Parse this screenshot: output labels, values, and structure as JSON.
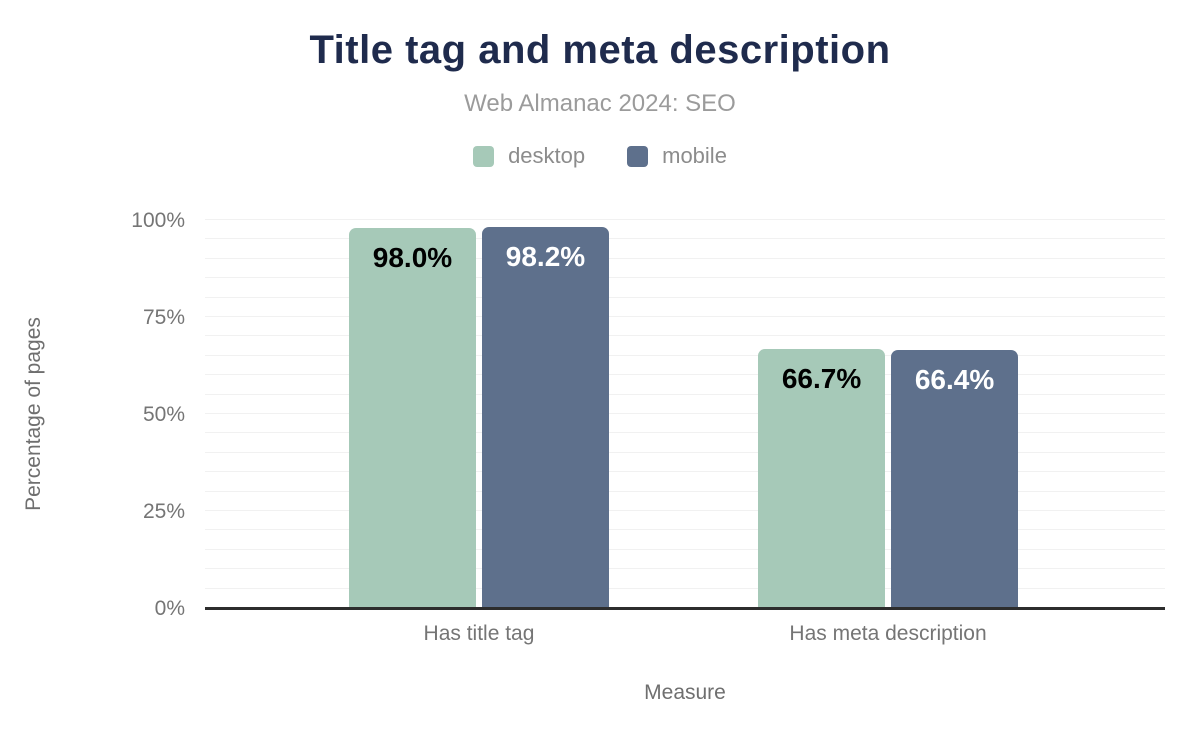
{
  "chart_data": {
    "type": "bar",
    "title": "Title tag and meta description",
    "subtitle": "Web Almanac 2024: SEO",
    "xlabel": "Measure",
    "ylabel": "Percentage of pages",
    "categories": [
      "Has title tag",
      "Has meta description"
    ],
    "series": [
      {
        "name": "desktop",
        "color": "#a6c9b8",
        "values": [
          98.0,
          66.7
        ],
        "data_labels": [
          "98.0%",
          "66.7%"
        ],
        "label_color": "#000000"
      },
      {
        "name": "mobile",
        "color": "#5e708c",
        "values": [
          98.2,
          66.4
        ],
        "data_labels": [
          "98.2%",
          "66.4%"
        ],
        "label_color": "#ffffff"
      }
    ],
    "ylim": [
      0,
      100
    ],
    "yticks": [
      {
        "value": 0,
        "label": "0%"
      },
      {
        "value": 25,
        "label": "25%"
      },
      {
        "value": 50,
        "label": "50%"
      },
      {
        "value": 75,
        "label": "75%"
      },
      {
        "value": 100,
        "label": "100%"
      }
    ],
    "grid": {
      "minor_step_percent": 5,
      "orientation": "horizontal"
    },
    "legend_position": "top",
    "colors": {
      "title": "#1f2b4d",
      "subtitle": "#9b9b9b",
      "axis_text": "#757575",
      "axis_line": "#2d2d2d",
      "gridline": "#f1f1f1"
    }
  }
}
